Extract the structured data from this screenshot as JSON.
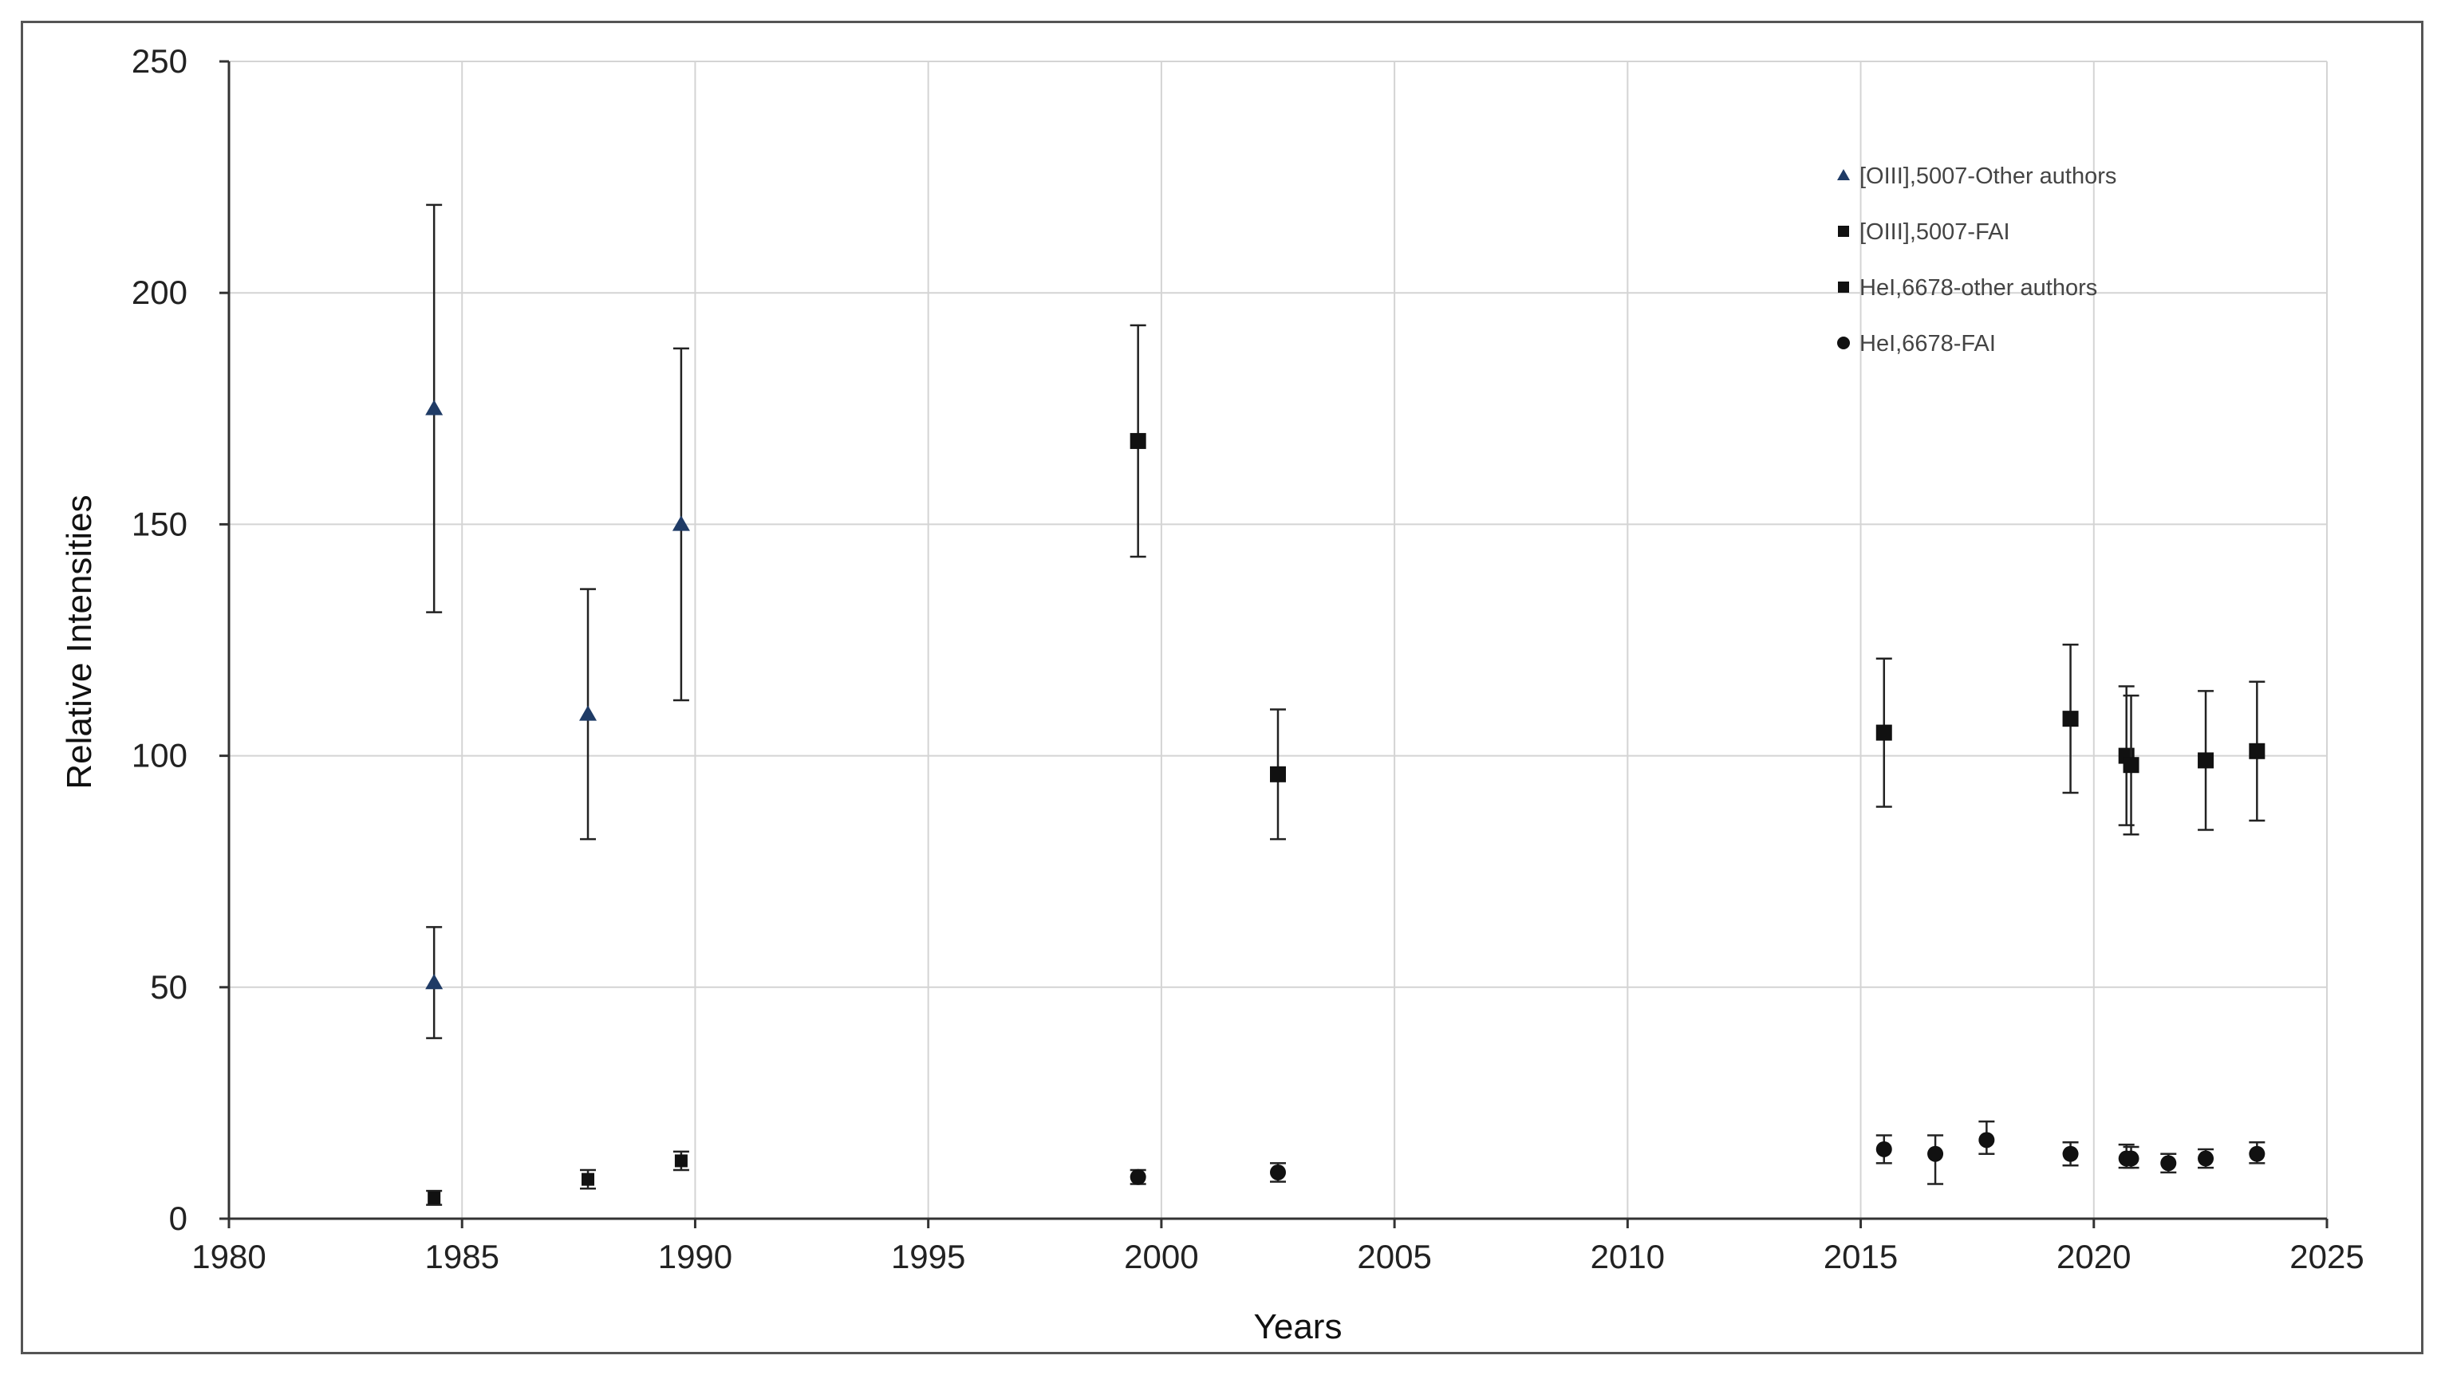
{
  "chart_data": {
    "type": "scatter",
    "title": "",
    "xlabel": "Years",
    "ylabel": "Relative Intensities",
    "xlim": [
      1980,
      2025
    ],
    "ylim": [
      0,
      250
    ],
    "x_ticks": [
      1980,
      1985,
      1990,
      1995,
      2000,
      2005,
      2010,
      2015,
      2020,
      2025
    ],
    "y_ticks": [
      0,
      50,
      100,
      150,
      200,
      250
    ],
    "grid": "on",
    "legend_position": "top-right",
    "series": [
      {
        "name": "[OIII],5007-Other authors",
        "marker": "triangle",
        "color": "#1f3b66",
        "points": [
          {
            "x": 1984.4,
            "y": 175,
            "err_low": 131,
            "err_high": 219
          },
          {
            "x": 1984.4,
            "y": 51,
            "err_low": 39,
            "err_high": 63
          },
          {
            "x": 1987.7,
            "y": 109,
            "err_low": 82,
            "err_high": 136
          },
          {
            "x": 1989.7,
            "y": 150,
            "err_low": 112,
            "err_high": 188
          }
        ]
      },
      {
        "name": "[OIII],5007-FAI",
        "marker": "square",
        "color": "#111111",
        "points": [
          {
            "x": 1999.5,
            "y": 168,
            "err_low": 143,
            "err_high": 193
          },
          {
            "x": 2002.5,
            "y": 96,
            "err_low": 82,
            "err_high": 110
          },
          {
            "x": 2015.5,
            "y": 105,
            "err_low": 89,
            "err_high": 121
          },
          {
            "x": 2019.5,
            "y": 108,
            "err_low": 92,
            "err_high": 124
          },
          {
            "x": 2020.7,
            "y": 100,
            "err_low": 85,
            "err_high": 115
          },
          {
            "x": 2020.8,
            "y": 98,
            "err_low": 83,
            "err_high": 113
          },
          {
            "x": 2022.4,
            "y": 99,
            "err_low": 84,
            "err_high": 114
          },
          {
            "x": 2023.5,
            "y": 101,
            "err_low": 86,
            "err_high": 116
          }
        ]
      },
      {
        "name": "HeI,6678-other authors",
        "marker": "square-small",
        "color": "#111111",
        "points": [
          {
            "x": 1984.4,
            "y": 4.5,
            "err_low": 3,
            "err_high": 6
          },
          {
            "x": 1987.7,
            "y": 8.5,
            "err_low": 6.5,
            "err_high": 10.5
          },
          {
            "x": 1989.7,
            "y": 12.5,
            "err_low": 10.5,
            "err_high": 14.5
          }
        ]
      },
      {
        "name": "HeI,6678-FAI",
        "marker": "circle",
        "color": "#111111",
        "points": [
          {
            "x": 1999.5,
            "y": 9,
            "err_low": 7.5,
            "err_high": 10.5
          },
          {
            "x": 2002.5,
            "y": 10,
            "err_low": 8,
            "err_high": 12
          },
          {
            "x": 2015.5,
            "y": 15,
            "err_low": 12,
            "err_high": 18
          },
          {
            "x": 2016.6,
            "y": 14,
            "err_low": 7.5,
            "err_high": 18
          },
          {
            "x": 2017.7,
            "y": 17,
            "err_low": 14,
            "err_high": 21
          },
          {
            "x": 2019.5,
            "y": 14,
            "err_low": 11.5,
            "err_high": 16.5
          },
          {
            "x": 2020.7,
            "y": 13,
            "err_low": 11,
            "err_high": 16
          },
          {
            "x": 2020.8,
            "y": 13,
            "err_low": 11,
            "err_high": 15.5
          },
          {
            "x": 2021.6,
            "y": 12,
            "err_low": 10,
            "err_high": 14
          },
          {
            "x": 2022.4,
            "y": 13,
            "err_low": 11,
            "err_high": 15
          },
          {
            "x": 2023.5,
            "y": 14,
            "err_low": 12,
            "err_high": 16.5
          }
        ]
      }
    ]
  }
}
